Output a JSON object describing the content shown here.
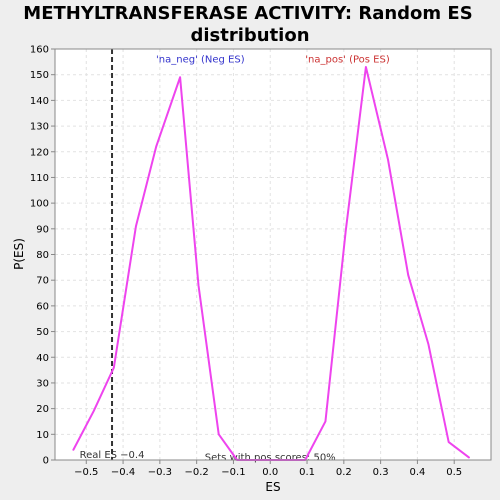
{
  "chart_data": {
    "type": "line",
    "title_lines": [
      "METHYLTRANSFERASE ACTIVITY: Random ES",
      "distribution"
    ],
    "xlabel": "ES",
    "ylabel": "P(ES)",
    "xlim": [
      -0.585,
      0.6
    ],
    "ylim": [
      0,
      160
    ],
    "x_ticks": [
      -0.5,
      -0.4,
      -0.3,
      -0.2,
      -0.1,
      0.0,
      0.1,
      0.2,
      0.3,
      0.4,
      0.5
    ],
    "x_tick_labels": [
      "−0.5",
      "−0.4",
      "−0.3",
      "−0.2",
      "−0.1",
      "0.0",
      "0.1",
      "0.2",
      "0.3",
      "0.4",
      "0.5"
    ],
    "y_ticks": [
      0,
      10,
      20,
      30,
      40,
      50,
      60,
      70,
      80,
      90,
      100,
      110,
      120,
      130,
      140,
      150,
      160
    ],
    "grid": true,
    "line_color": "#ee44ee",
    "series": [
      {
        "x": [
          -0.535,
          -0.48,
          -0.425,
          -0.365,
          -0.31,
          -0.245,
          -0.195,
          -0.14,
          -0.09,
          0.0,
          0.095,
          0.15,
          0.205,
          0.26,
          0.32,
          0.375,
          0.43,
          0.485,
          0.54
        ],
        "values": [
          4,
          19,
          36,
          91,
          122,
          149,
          68,
          10,
          0,
          0,
          0,
          15,
          89,
          153,
          117,
          72,
          45,
          7,
          1
        ]
      }
    ],
    "real_es": {
      "x": -0.43,
      "label": "Real ES −0.4",
      "color": "#333333"
    },
    "annotations": [
      {
        "text": "'na_neg' (Neg ES)",
        "x": -0.19,
        "y": 156,
        "color": "#3333cc"
      },
      {
        "text": "'na_pos' (Pos ES)",
        "x": 0.21,
        "y": 156,
        "color": "#cc3333"
      },
      {
        "text": "Sets with pos scores: 50%",
        "x": 0.0,
        "y": 1,
        "color": "#333333"
      }
    ]
  }
}
